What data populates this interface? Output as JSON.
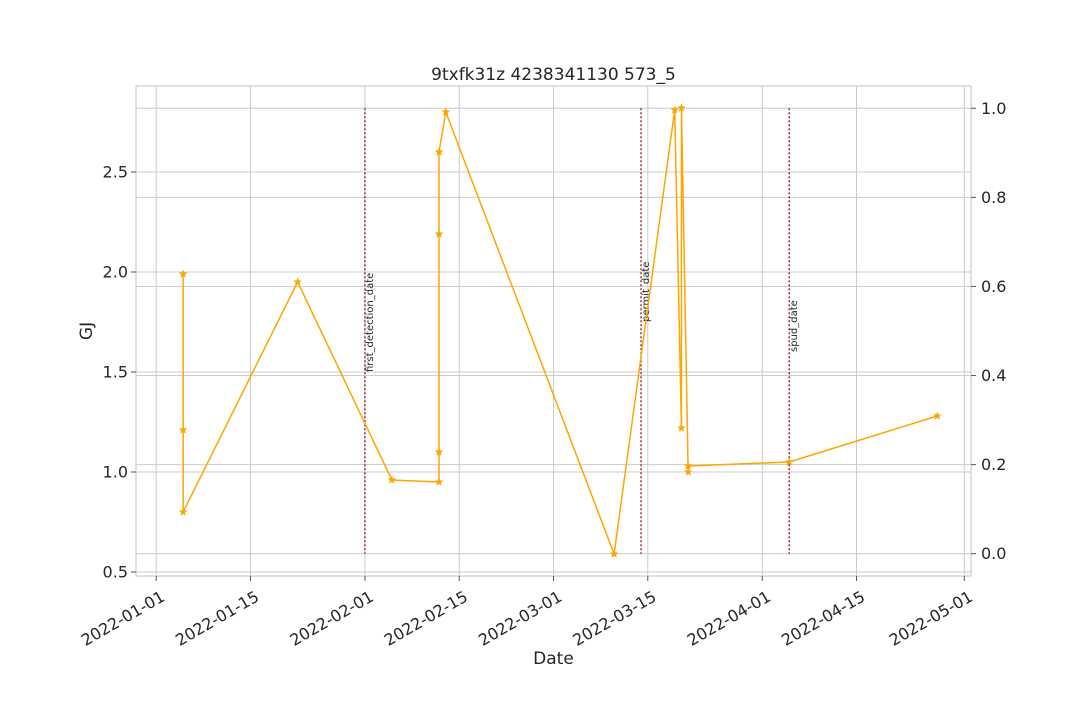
{
  "chart_data": {
    "type": "line",
    "title": "9txfk31z 4238341130 573_5",
    "xlabel": "Date",
    "ylabel": "GJ",
    "ylabel_color": "#1f77b4",
    "series_color": "#ffa500",
    "marker": "star",
    "grid": true,
    "xlim": [
      "2021-12-29",
      "2022-05-02"
    ],
    "ylim": [
      0.48,
      2.93
    ],
    "y2lim": [
      -0.05,
      1.05
    ],
    "x_ticks": [
      "2022-01-01",
      "2022-01-15",
      "2022-02-01",
      "2022-02-15",
      "2022-03-01",
      "2022-03-15",
      "2022-04-01",
      "2022-04-15",
      "2022-05-01"
    ],
    "y_ticks": [
      "0.5",
      "1.0",
      "1.5",
      "2.0",
      "2.5"
    ],
    "y2_ticks": [
      "0.0",
      "0.2",
      "0.4",
      "0.6",
      "0.8",
      "1.0"
    ],
    "series": [
      {
        "x": [
          "2022-01-05",
          "2022-01-05",
          "2022-01-05",
          "2022-01-22",
          "2022-02-05",
          "2022-02-12",
          "2022-02-12",
          "2022-02-12",
          "2022-02-12",
          "2022-02-13",
          "2022-03-10",
          "2022-03-19",
          "2022-03-20",
          "2022-03-20",
          "2022-03-21",
          "2022-03-21",
          "2022-04-05",
          "2022-04-27"
        ],
        "y": [
          1.99,
          1.21,
          0.8,
          1.95,
          0.96,
          0.95,
          1.1,
          2.19,
          2.6,
          2.8,
          0.59,
          2.81,
          1.22,
          2.82,
          1.0,
          1.03,
          1.05,
          1.28
        ]
      }
    ],
    "vlines": [
      {
        "label": "first_detection_date",
        "x": "2022-02-01",
        "color": "#8b0000"
      },
      {
        "label": "permit_date",
        "x": "2022-03-14",
        "color": "#8b0000"
      },
      {
        "label": "spud_date",
        "x": "2022-04-05",
        "color": "#8b0000"
      }
    ]
  }
}
